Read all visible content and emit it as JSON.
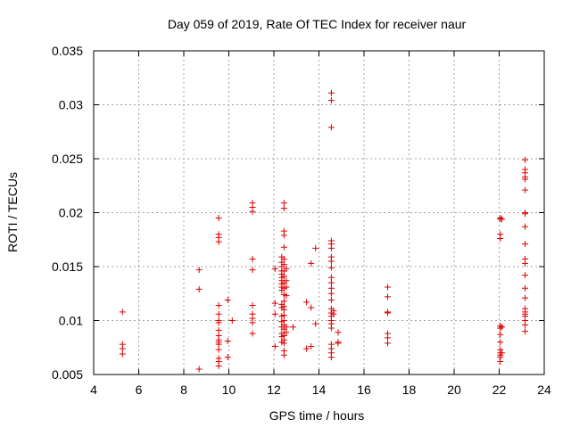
{
  "chart_data": {
    "type": "scatter",
    "title": "Day 059 of 2019, Rate Of TEC Index for receiver naur",
    "xlabel": "GPS time / hours",
    "ylabel": "ROTI / TECUs",
    "xlim": [
      4,
      24
    ],
    "ylim": [
      0.005,
      0.035
    ],
    "xticks": [
      4,
      6,
      8,
      10,
      12,
      14,
      16,
      18,
      20,
      22,
      24
    ],
    "yticks": [
      0.005,
      0.01,
      0.015,
      0.02,
      0.025,
      0.03,
      0.035
    ],
    "xtick_labels": [
      "4",
      "6",
      "8",
      "10",
      "12",
      "14",
      "16",
      "18",
      "20",
      "22",
      "24"
    ],
    "ytick_labels": [
      "0.005",
      "0.01",
      "0.015",
      "0.02",
      "0.025",
      "0.03",
      "0.035"
    ],
    "grid": true,
    "marker": "+",
    "color": "#dd0000",
    "series": [
      {
        "name": "ROTI",
        "points": [
          [
            5.28,
            0.0108
          ],
          [
            5.28,
            0.0078
          ],
          [
            5.28,
            0.0074
          ],
          [
            5.28,
            0.0069
          ],
          [
            8.68,
            0.0147
          ],
          [
            8.68,
            0.0129
          ],
          [
            8.68,
            0.0055
          ],
          [
            9.55,
            0.0195
          ],
          [
            9.55,
            0.018
          ],
          [
            9.55,
            0.0177
          ],
          [
            9.55,
            0.0173
          ],
          [
            9.55,
            0.0114
          ],
          [
            9.55,
            0.0106
          ],
          [
            9.55,
            0.01
          ],
          [
            9.55,
            0.0098
          ],
          [
            9.55,
            0.0091
          ],
          [
            9.55,
            0.0086
          ],
          [
            9.55,
            0.0082
          ],
          [
            9.55,
            0.008
          ],
          [
            9.55,
            0.0078
          ],
          [
            9.55,
            0.0073
          ],
          [
            9.55,
            0.0065
          ],
          [
            9.55,
            0.0062
          ],
          [
            9.55,
            0.0058
          ],
          [
            9.95,
            0.0119
          ],
          [
            9.95,
            0.0081
          ],
          [
            9.95,
            0.0066
          ],
          [
            10.15,
            0.01
          ],
          [
            11.05,
            0.0209
          ],
          [
            11.05,
            0.0205
          ],
          [
            11.05,
            0.0201
          ],
          [
            11.05,
            0.0157
          ],
          [
            11.05,
            0.0147
          ],
          [
            11.05,
            0.0114
          ],
          [
            11.05,
            0.0106
          ],
          [
            11.05,
            0.0102
          ],
          [
            11.05,
            0.0098
          ],
          [
            11.05,
            0.0088
          ],
          [
            12.05,
            0.0148
          ],
          [
            12.05,
            0.0116
          ],
          [
            12.05,
            0.0106
          ],
          [
            12.05,
            0.0076
          ],
          [
            12.35,
            0.0159
          ],
          [
            12.35,
            0.0154
          ],
          [
            12.35,
            0.015
          ],
          [
            12.35,
            0.0146
          ],
          [
            12.35,
            0.0143
          ],
          [
            12.35,
            0.014
          ],
          [
            12.35,
            0.0137
          ],
          [
            12.35,
            0.0134
          ],
          [
            12.35,
            0.0131
          ],
          [
            12.35,
            0.0128
          ],
          [
            12.35,
            0.0115
          ],
          [
            12.35,
            0.0112
          ],
          [
            12.35,
            0.0104
          ],
          [
            12.35,
            0.0099
          ],
          [
            12.35,
            0.0094
          ],
          [
            12.35,
            0.0088
          ],
          [
            12.35,
            0.0085
          ],
          [
            12.35,
            0.008
          ],
          [
            12.45,
            0.0209
          ],
          [
            12.45,
            0.0204
          ],
          [
            12.45,
            0.0183
          ],
          [
            12.45,
            0.0179
          ],
          [
            12.45,
            0.0168
          ],
          [
            12.45,
            0.0157
          ],
          [
            12.45,
            0.0152
          ],
          [
            12.45,
            0.0146
          ],
          [
            12.45,
            0.0141
          ],
          [
            12.45,
            0.0135
          ],
          [
            12.45,
            0.013
          ],
          [
            12.45,
            0.0124
          ],
          [
            12.45,
            0.0118
          ],
          [
            12.45,
            0.0113
          ],
          [
            12.45,
            0.011
          ],
          [
            12.45,
            0.0105
          ],
          [
            12.45,
            0.01
          ],
          [
            12.45,
            0.0096
          ],
          [
            12.45,
            0.0092
          ],
          [
            12.45,
            0.0086
          ],
          [
            12.45,
            0.0082
          ],
          [
            12.45,
            0.0079
          ],
          [
            12.45,
            0.0072
          ],
          [
            12.45,
            0.0068
          ],
          [
            12.55,
            0.0148
          ],
          [
            12.55,
            0.0137
          ],
          [
            12.55,
            0.0131
          ],
          [
            12.55,
            0.0123
          ],
          [
            12.55,
            0.0094
          ],
          [
            12.55,
            0.0089
          ],
          [
            12.85,
            0.0094
          ],
          [
            13.45,
            0.0117
          ],
          [
            13.45,
            0.0074
          ],
          [
            13.65,
            0.0153
          ],
          [
            13.65,
            0.0112
          ],
          [
            13.65,
            0.0076
          ],
          [
            13.85,
            0.0167
          ],
          [
            13.85,
            0.0097
          ],
          [
            14.55,
            0.0311
          ],
          [
            14.55,
            0.0304
          ],
          [
            14.55,
            0.0279
          ],
          [
            14.55,
            0.0174
          ],
          [
            14.55,
            0.0171
          ],
          [
            14.55,
            0.0167
          ],
          [
            14.55,
            0.0159
          ],
          [
            14.55,
            0.0155
          ],
          [
            14.55,
            0.0149
          ],
          [
            14.55,
            0.014
          ],
          [
            14.55,
            0.0135
          ],
          [
            14.55,
            0.013
          ],
          [
            14.55,
            0.0125
          ],
          [
            14.55,
            0.0119
          ],
          [
            14.55,
            0.0111
          ],
          [
            14.55,
            0.0107
          ],
          [
            14.55,
            0.0104
          ],
          [
            14.55,
            0.01
          ],
          [
            14.55,
            0.0097
          ],
          [
            14.55,
            0.0093
          ],
          [
            14.55,
            0.0078
          ],
          [
            14.55,
            0.0074
          ],
          [
            14.55,
            0.007
          ],
          [
            14.55,
            0.0066
          ],
          [
            14.65,
            0.0109
          ],
          [
            14.65,
            0.0106
          ],
          [
            14.85,
            0.0089
          ],
          [
            14.85,
            0.008
          ],
          [
            14.85,
            0.0079
          ],
          [
            17.05,
            0.0131
          ],
          [
            17.05,
            0.0122
          ],
          [
            17.05,
            0.0108
          ],
          [
            17.05,
            0.0107
          ],
          [
            17.05,
            0.0088
          ],
          [
            17.05,
            0.0084
          ],
          [
            17.05,
            0.0079
          ],
          [
            22.05,
            0.0195
          ],
          [
            22.05,
            0.0194
          ],
          [
            22.05,
            0.018
          ],
          [
            22.05,
            0.0176
          ],
          [
            22.05,
            0.0095
          ],
          [
            22.05,
            0.0093
          ],
          [
            22.05,
            0.0087
          ],
          [
            22.05,
            0.008
          ],
          [
            22.05,
            0.0073
          ],
          [
            22.05,
            0.007
          ],
          [
            22.05,
            0.0068
          ],
          [
            22.05,
            0.0066
          ],
          [
            22.05,
            0.0062
          ],
          [
            22.12,
            0.0194
          ],
          [
            22.12,
            0.0094
          ],
          [
            22.12,
            0.007
          ],
          [
            23.15,
            0.0249
          ],
          [
            23.15,
            0.024
          ],
          [
            23.15,
            0.0237
          ],
          [
            23.15,
            0.0233
          ],
          [
            23.15,
            0.0231
          ],
          [
            23.15,
            0.0221
          ],
          [
            23.15,
            0.02
          ],
          [
            23.15,
            0.0199
          ],
          [
            23.15,
            0.0187
          ],
          [
            23.15,
            0.0171
          ],
          [
            23.15,
            0.0157
          ],
          [
            23.15,
            0.0153
          ],
          [
            23.15,
            0.0142
          ],
          [
            23.15,
            0.013
          ],
          [
            23.15,
            0.0121
          ],
          [
            23.15,
            0.0111
          ],
          [
            23.15,
            0.0108
          ],
          [
            23.15,
            0.0106
          ],
          [
            23.15,
            0.0104
          ],
          [
            23.15,
            0.01
          ],
          [
            23.15,
            0.0096
          ],
          [
            23.15,
            0.009
          ]
        ]
      }
    ]
  }
}
